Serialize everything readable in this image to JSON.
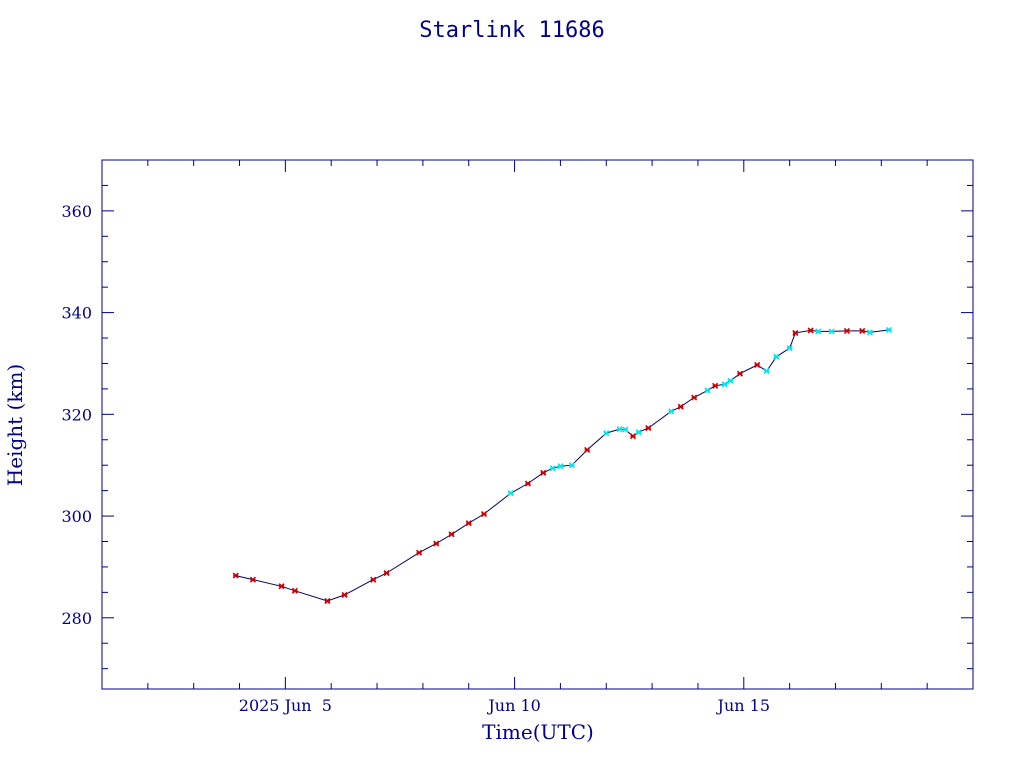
{
  "chart_data": {
    "type": "line",
    "title": "Starlink 11686",
    "xlabel": "Time(UTC)",
    "ylabel": "Height (km)",
    "x_axis": {
      "kind": "date",
      "range": [
        "2025-06-01T00:00",
        "2025-06-20T00:00"
      ],
      "tick_labels": [
        {
          "at": "2025-06-05T00:00",
          "label": "2025 Jun  5"
        },
        {
          "at": "2025-06-10T00:00",
          "label": "Jun 10"
        },
        {
          "at": "2025-06-15T00:00",
          "label": "Jun 15"
        }
      ]
    },
    "y_axis": {
      "range": [
        266,
        370
      ],
      "ticks": [
        280,
        300,
        320,
        340,
        360
      ]
    },
    "grid": false,
    "legend": "none",
    "colors": {
      "axis": "#00008b",
      "line": "#000066",
      "marker_primary": "#cc0000",
      "marker_secondary": "#00e5ee"
    },
    "series": [
      {
        "points": [
          {
            "x": "2025-06-03T22:00",
            "y": 288.3,
            "m": "r"
          },
          {
            "x": "2025-06-04T07:00",
            "y": 287.5,
            "m": "r"
          },
          {
            "x": "2025-06-04T22:00",
            "y": 286.2,
            "m": "r"
          },
          {
            "x": "2025-06-05T05:00",
            "y": 285.3,
            "m": "r"
          },
          {
            "x": "2025-06-05T22:00",
            "y": 283.3,
            "m": "r"
          },
          {
            "x": "2025-06-06T07:00",
            "y": 284.5,
            "m": "r"
          },
          {
            "x": "2025-06-06T22:00",
            "y": 287.5,
            "m": "r"
          },
          {
            "x": "2025-06-07T05:00",
            "y": 288.8,
            "m": "r"
          },
          {
            "x": "2025-06-07T22:00",
            "y": 292.8,
            "m": "r"
          },
          {
            "x": "2025-06-08T07:00",
            "y": 294.6,
            "m": "r"
          },
          {
            "x": "2025-06-08T15:00",
            "y": 296.4,
            "m": "r"
          },
          {
            "x": "2025-06-09T00:00",
            "y": 298.6,
            "m": "r"
          },
          {
            "x": "2025-06-09T08:00",
            "y": 300.4,
            "m": "r"
          },
          {
            "x": "2025-06-09T22:00",
            "y": 304.5,
            "m": "c"
          },
          {
            "x": "2025-06-10T07:00",
            "y": 306.4,
            "m": "r"
          },
          {
            "x": "2025-06-10T15:00",
            "y": 308.5,
            "m": "r"
          },
          {
            "x": "2025-06-10T20:00",
            "y": 309.4,
            "m": "c"
          },
          {
            "x": "2025-06-11T00:00",
            "y": 309.8,
            "m": "c"
          },
          {
            "x": "2025-06-11T06:00",
            "y": 310.0,
            "m": "c"
          },
          {
            "x": "2025-06-11T14:00",
            "y": 313.0,
            "m": "r"
          },
          {
            "x": "2025-06-12T00:00",
            "y": 316.3,
            "m": "c"
          },
          {
            "x": "2025-06-12T07:00",
            "y": 317.1,
            "m": "c"
          },
          {
            "x": "2025-06-12T10:00",
            "y": 317.0,
            "m": "c"
          },
          {
            "x": "2025-06-12T14:00",
            "y": 315.7,
            "m": "r"
          },
          {
            "x": "2025-06-12T17:00",
            "y": 316.5,
            "m": "c"
          },
          {
            "x": "2025-06-12T22:00",
            "y": 317.3,
            "m": "r"
          },
          {
            "x": "2025-06-13T10:00",
            "y": 320.6,
            "m": "c"
          },
          {
            "x": "2025-06-13T15:00",
            "y": 321.5,
            "m": "r"
          },
          {
            "x": "2025-06-13T22:00",
            "y": 323.3,
            "m": "r"
          },
          {
            "x": "2025-06-14T05:00",
            "y": 324.7,
            "m": "c"
          },
          {
            "x": "2025-06-14T09:00",
            "y": 325.6,
            "m": "r"
          },
          {
            "x": "2025-06-14T14:00",
            "y": 325.9,
            "m": "c"
          },
          {
            "x": "2025-06-14T17:00",
            "y": 326.6,
            "m": "c"
          },
          {
            "x": "2025-06-14T22:00",
            "y": 328.0,
            "m": "r"
          },
          {
            "x": "2025-06-15T07:00",
            "y": 329.7,
            "m": "r"
          },
          {
            "x": "2025-06-15T12:00",
            "y": 328.5,
            "m": "c"
          },
          {
            "x": "2025-06-15T17:00",
            "y": 331.3,
            "m": "c"
          },
          {
            "x": "2025-06-16T00:00",
            "y": 333.0,
            "m": "c"
          },
          {
            "x": "2025-06-16T03:00",
            "y": 336.0,
            "m": "r"
          },
          {
            "x": "2025-06-16T11:00",
            "y": 336.5,
            "m": "r"
          },
          {
            "x": "2025-06-16T15:00",
            "y": 336.3,
            "m": "c"
          },
          {
            "x": "2025-06-16T22:00",
            "y": 336.3,
            "m": "c"
          },
          {
            "x": "2025-06-17T06:00",
            "y": 336.4,
            "m": "r"
          },
          {
            "x": "2025-06-17T14:00",
            "y": 336.4,
            "m": "r"
          },
          {
            "x": "2025-06-17T18:00",
            "y": 336.1,
            "m": "c"
          },
          {
            "x": "2025-06-18T04:00",
            "y": 336.6,
            "m": "c"
          }
        ]
      }
    ]
  }
}
